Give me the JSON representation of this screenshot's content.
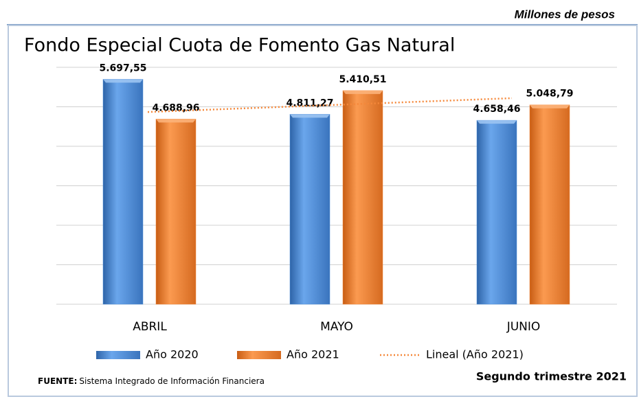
{
  "unit_note": "Millones de pesos",
  "chart_data": {
    "type": "bar",
    "title": "Fondo Especial Cuota de Fomento Gas Natural",
    "categories": [
      "ABRIL",
      "MAYO",
      "JUNIO"
    ],
    "series": [
      {
        "name": "Año 2020",
        "color": "#4f8fd9",
        "values": [
          5697.55,
          4811.27,
          4658.46
        ],
        "value_labels": [
          "5.697,55",
          "4.811,27",
          "4.658,46"
        ]
      },
      {
        "name": "Año 2021",
        "color": "#f5883a",
        "values": [
          4688.96,
          5410.51,
          5048.79
        ],
        "value_labels": [
          "4.688,96",
          "5.410,51",
          "5.048,79"
        ]
      }
    ],
    "trendline": {
      "name": "Lineal (Año 2021)",
      "series": 1,
      "color": "#f5883a"
    },
    "ylim": [
      0,
      6000
    ],
    "yticks": [
      0,
      1000,
      2000,
      3000,
      4000,
      5000,
      6000
    ],
    "grid": true
  },
  "footer": {
    "source_label": "FUENTE:",
    "source": "Sistema Integrado de Información Financiera",
    "period": "Segundo trimestre 2021"
  }
}
